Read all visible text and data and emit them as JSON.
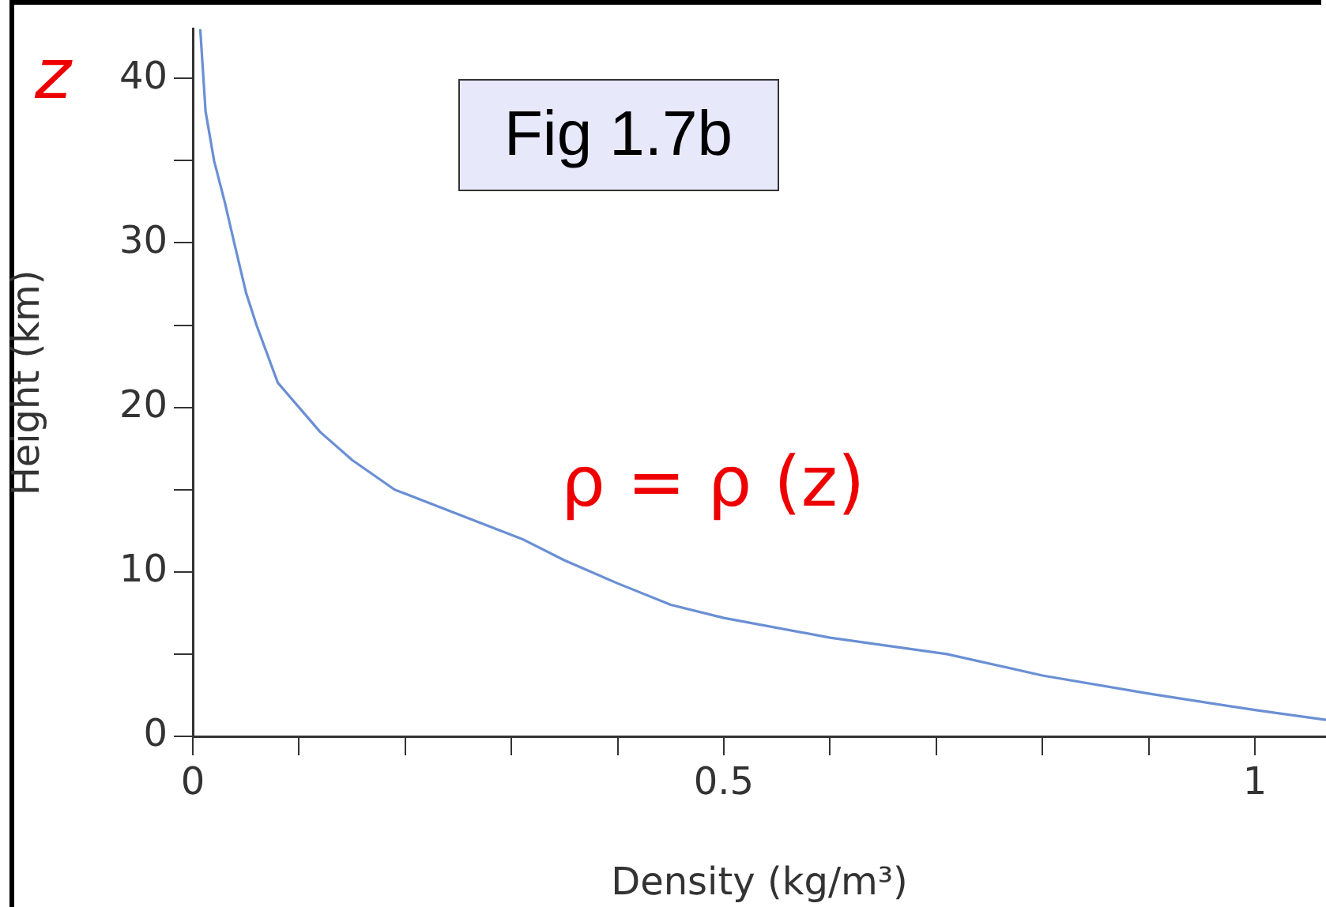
{
  "chart_data": {
    "type": "line",
    "xlabel": "Density (kg/m³)",
    "ylabel": "Height (km)",
    "annotations": [
      "z",
      "Fig 1.7b",
      "ρ = ρ (z)"
    ],
    "series": [
      {
        "color": "#6a8fd4",
        "x": [
          1.067,
          1.0,
          0.9,
          0.8,
          0.71,
          0.6,
          0.5,
          0.45,
          0.4,
          0.35,
          0.31,
          0.25,
          0.19,
          0.15,
          0.12,
          0.1,
          0.08,
          0.06,
          0.05,
          0.039,
          0.03,
          0.02,
          0.012,
          0.007
        ],
        "values": [
          1.0,
          1.6,
          2.6,
          3.7,
          5.0,
          6.0,
          7.2,
          8.0,
          9.3,
          10.7,
          12.0,
          13.5,
          15.0,
          16.8,
          18.5,
          20.0,
          21.5,
          25.0,
          27.0,
          30.0,
          32.5,
          35.0,
          38.0,
          43.0
        ]
      }
    ],
    "xlim": [
      0,
      1.067
    ],
    "ylim": [
      0,
      43
    ],
    "xticks": [
      0,
      {
        "value": 0.1,
        "label": null
      },
      {
        "value": 0.2,
        "label": null
      },
      {
        "value": 0.3,
        "label": null
      },
      {
        "value": 0.4,
        "label": null
      },
      0.5,
      {
        "value": 0.6,
        "label": null
      },
      {
        "value": 0.7,
        "label": null
      },
      {
        "value": 0.8,
        "label": null
      },
      {
        "value": 0.9,
        "label": null
      },
      1
    ],
    "yticks": [
      0,
      {
        "value": 5,
        "label": null
      },
      10,
      {
        "value": 15,
        "label": null
      },
      20,
      {
        "value": 25,
        "label": null
      },
      30,
      {
        "value": 35,
        "label": null
      },
      40
    ],
    "grid": false,
    "legend": false,
    "marker": "none",
    "line_style": "solid"
  }
}
